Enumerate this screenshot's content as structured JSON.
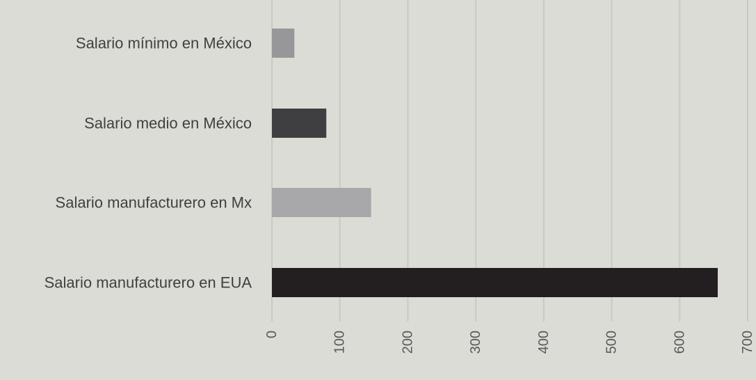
{
  "chart_data": {
    "type": "bar",
    "orientation": "horizontal",
    "categories": [
      "Salario mínimo en México",
      "Salario medio en México",
      "Salario manufacturero en Mx",
      "Salario manufacturero en EUA"
    ],
    "values": [
      33,
      80,
      146,
      656
    ],
    "bar_colors": [
      "#97979a",
      "#3f3f42",
      "#a8a8ab",
      "#231f20"
    ],
    "xlim": [
      0,
      700
    ],
    "xticks": [
      "0",
      "100",
      "200",
      "300",
      "400",
      "500",
      "600",
      "700"
    ],
    "tick_label_rotation": "vertical",
    "title": "",
    "xlabel": "",
    "ylabel": "",
    "grid": "vertical lines",
    "legend": "none"
  }
}
